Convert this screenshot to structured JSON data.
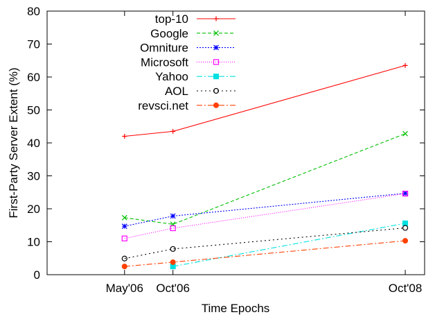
{
  "chart_data": {
    "type": "line",
    "title": "",
    "xlabel": "Time Epochs",
    "ylabel": "First-Party Server Extent (%)",
    "x": [
      "May'06",
      "Oct'06",
      "Oct'08"
    ],
    "x_positions": [
      0,
      5,
      29
    ],
    "xlim": [
      -8,
      31
    ],
    "ylim": [
      0,
      80
    ],
    "yticks": [
      0,
      10,
      20,
      30,
      40,
      50,
      60,
      70,
      80
    ],
    "grid": false,
    "legend_position": "top-left",
    "series": [
      {
        "name": "top-10",
        "values": [
          42,
          43.5,
          63.5
        ],
        "color": "#ff0000",
        "dash": "",
        "marker": "plus"
      },
      {
        "name": "Google",
        "values": [
          17.3,
          15.3,
          42.8
        ],
        "color": "#00c000",
        "dash": "5,3",
        "marker": "cross"
      },
      {
        "name": "Omniture",
        "values": [
          14.7,
          17.8,
          24.7
        ],
        "color": "#0000ff",
        "dash": "2,2",
        "marker": "star"
      },
      {
        "name": "Microsoft",
        "values": [
          11.0,
          14.1,
          24.6
        ],
        "color": "#ff00ff",
        "dash": "1,2",
        "marker": "square-open"
      },
      {
        "name": "Yahoo",
        "values": [
          null,
          2.5,
          15.6
        ],
        "color": "#00e0e0",
        "dash": "8,3,2,3",
        "marker": "square-filled"
      },
      {
        "name": "AOL",
        "values": [
          4.9,
          7.8,
          14.2
        ],
        "color": "#000000",
        "dash": "2,4",
        "marker": "circle-open"
      },
      {
        "name": "revsci.net",
        "values": [
          2.5,
          3.8,
          10.3
        ],
        "color": "#ff4000",
        "dash": "8,3,2,3",
        "marker": "circle-filled"
      }
    ]
  }
}
